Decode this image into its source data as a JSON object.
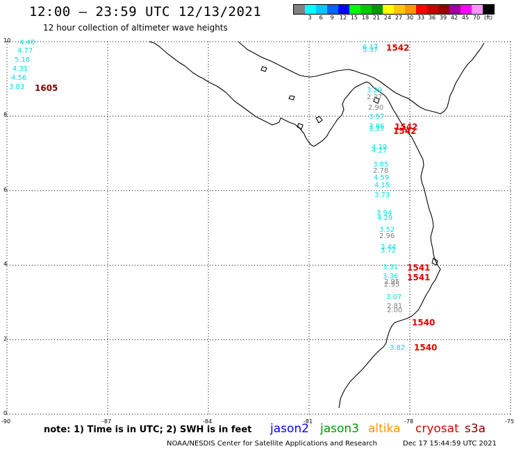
{
  "header": {
    "title": "12:00 – 23:59 UTC 12/13/2021",
    "subtitle": "12 hour collection of altimeter wave heights"
  },
  "colorbar": {
    "unit": "(ft)",
    "bins": [
      {
        "label": "",
        "color": "#808080"
      },
      {
        "label": "3",
        "color": "#00ffff"
      },
      {
        "label": "6",
        "color": "#00c8ff"
      },
      {
        "label": "9",
        "color": "#0064ff"
      },
      {
        "label": "12",
        "color": "#0000ff"
      },
      {
        "label": "15",
        "color": "#00ff00"
      },
      {
        "label": "18",
        "color": "#00c800"
      },
      {
        "label": "21",
        "color": "#009600"
      },
      {
        "label": "24",
        "color": "#ffff00"
      },
      {
        "label": "27",
        "color": "#ffc800"
      },
      {
        "label": "30",
        "color": "#ff9600"
      },
      {
        "label": "33",
        "color": "#ff0000"
      },
      {
        "label": "36",
        "color": "#c80000"
      },
      {
        "label": "39",
        "color": "#960000"
      },
      {
        "label": "42",
        "color": "#a000a0"
      },
      {
        "label": "45",
        "color": "#ff00ff"
      },
      {
        "label": "70",
        "color": "#ff96ff"
      },
      {
        "label": "",
        "color": "#000000"
      }
    ]
  },
  "map": {
    "lon_range": [
      -90,
      -75
    ],
    "lat_range": [
      0,
      10
    ],
    "x_ticks": [
      "-90",
      "-87",
      "-84",
      "-81",
      "-78",
      "-75"
    ],
    "y_ticks": [
      "10",
      "8",
      "6",
      "4",
      "2",
      "0"
    ],
    "gridlines": true,
    "observations": [
      {
        "value": "4.40",
        "color": "#00e0e0"
      },
      {
        "value": "4.77",
        "color": "#00e0e0"
      },
      {
        "value": "5.18",
        "color": "#00e0e0"
      },
      {
        "value": "4.31",
        "color": "#00e0e0"
      },
      {
        "value": "4.56",
        "color": "#00e0e0"
      },
      {
        "value": "3.83",
        "color": "#00e0e0"
      },
      {
        "value": "6.17",
        "color": "#00e0e0"
      },
      {
        "value": "5.37",
        "color": "#00e0e0"
      },
      {
        "value": "3.29",
        "color": "#00e0e0"
      },
      {
        "value": "2.27",
        "color": "#808080"
      },
      {
        "value": "2.90",
        "color": "#808080"
      },
      {
        "value": "3.57",
        "color": "#00e0e0"
      },
      {
        "value": "3.86",
        "color": "#00e0e0"
      },
      {
        "value": "3.37",
        "color": "#00e0e0"
      },
      {
        "value": "4.19",
        "color": "#00e0e0"
      },
      {
        "value": "4.27",
        "color": "#00e0e0"
      },
      {
        "value": "3.85",
        "color": "#00e0e0"
      },
      {
        "value": "2.78",
        "color": "#808080"
      },
      {
        "value": "4.59",
        "color": "#00e0e0"
      },
      {
        "value": "4.15",
        "color": "#00e0e0"
      },
      {
        "value": "3.73",
        "color": "#00e0e0"
      },
      {
        "value": "3.94",
        "color": "#00e0e0"
      },
      {
        "value": "4.29",
        "color": "#00e0e0"
      },
      {
        "value": "3.52",
        "color": "#00e0e0"
      },
      {
        "value": "2.96",
        "color": "#808080"
      },
      {
        "value": "3.44",
        "color": "#00e0e0"
      },
      {
        "value": "3.72",
        "color": "#00e0e0"
      },
      {
        "value": "3.31",
        "color": "#00e0e0"
      },
      {
        "value": "3.36",
        "color": "#00e0e0"
      },
      {
        "value": "2.95",
        "color": "#808080"
      },
      {
        "value": "2.95",
        "color": "#808080"
      },
      {
        "value": "3.07",
        "color": "#00e0e0"
      },
      {
        "value": "2.81",
        "color": "#808080"
      },
      {
        "value": "2.00",
        "color": "#808080"
      },
      {
        "value": "3.82",
        "color": "#00e0e0"
      }
    ],
    "pass_labels": [
      {
        "text": "1605",
        "color": "#800000"
      },
      {
        "text": "1542",
        "color": "#e00000"
      },
      {
        "text": "1542",
        "color": "#e00000"
      },
      {
        "text": "1542",
        "color": "#e00000"
      },
      {
        "text": "1541",
        "color": "#e00000"
      },
      {
        "text": "1541",
        "color": "#e00000"
      },
      {
        "text": "1540",
        "color": "#e00000"
      },
      {
        "text": "1540",
        "color": "#e00000"
      }
    ]
  },
  "footer": {
    "note": "note:  1) Time is in UTC; 2) SWH is in feet",
    "legend": [
      {
        "name": "jason2",
        "color": "#0000ff"
      },
      {
        "name": "jason3",
        "color": "#009600"
      },
      {
        "name": "altika",
        "color": "#ff9600"
      },
      {
        "name": "cryosat",
        "color": "#e00000"
      },
      {
        "name": "s3a",
        "color": "#800000"
      }
    ],
    "credit": "NOAA/NESDIS Center for Satellite Applications and Research",
    "timestamp": "Dec 17 15:44:59 UTC 2021"
  }
}
